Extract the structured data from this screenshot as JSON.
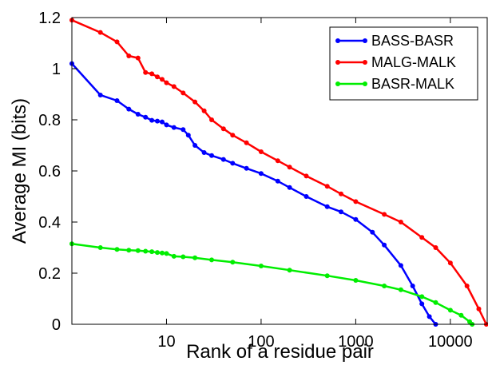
{
  "chart_data": {
    "type": "line",
    "title": "",
    "xlabel": "Rank of a residue pair",
    "ylabel": "Average MI (bits)",
    "xscale": "log",
    "xlim": [
      1,
      25000
    ],
    "ylim": [
      0,
      1.2
    ],
    "x_ticks": [
      {
        "value": 10,
        "label": "10"
      },
      {
        "value": 100,
        "label": "100"
      },
      {
        "value": 1000,
        "label": "1000"
      },
      {
        "value": 10000,
        "label": "10000"
      }
    ],
    "y_ticks": [
      {
        "value": 0,
        "label": "0"
      },
      {
        "value": 0.2,
        "label": "0.2"
      },
      {
        "value": 0.4,
        "label": "0.4"
      },
      {
        "value": 0.6,
        "label": "0.6"
      },
      {
        "value": 0.8,
        "label": "0.8"
      },
      {
        "value": 1,
        "label": "1"
      },
      {
        "value": 1.2,
        "label": "1.2"
      }
    ],
    "grid": false,
    "legend_position": "top-right",
    "series": [
      {
        "name": "BASS-BASR",
        "color": "#0000ff",
        "x": [
          1,
          2,
          3,
          4,
          5,
          6,
          7,
          8,
          9,
          10,
          12,
          15,
          17,
          20,
          25,
          30,
          40,
          50,
          70,
          100,
          150,
          200,
          300,
          500,
          700,
          1000,
          1500,
          2000,
          3000,
          4000,
          5000,
          6000,
          7000
        ],
        "y": [
          1.02,
          0.897,
          0.875,
          0.842,
          0.822,
          0.81,
          0.798,
          0.795,
          0.792,
          0.78,
          0.77,
          0.762,
          0.74,
          0.7,
          0.672,
          0.66,
          0.645,
          0.63,
          0.61,
          0.59,
          0.56,
          0.535,
          0.5,
          0.46,
          0.44,
          0.41,
          0.36,
          0.31,
          0.23,
          0.15,
          0.08,
          0.03,
          0.0
        ]
      },
      {
        "name": "MALG-MALK",
        "color": "#ff0000",
        "x": [
          1,
          2,
          3,
          4,
          5,
          6,
          7,
          8,
          9,
          10,
          12,
          15,
          20,
          25,
          30,
          40,
          50,
          70,
          100,
          150,
          200,
          300,
          500,
          700,
          1000,
          2000,
          3000,
          5000,
          7000,
          10000,
          15000,
          20000,
          24000
        ],
        "y": [
          1.19,
          1.142,
          1.105,
          1.05,
          1.042,
          0.985,
          0.98,
          0.968,
          0.958,
          0.945,
          0.93,
          0.905,
          0.87,
          0.835,
          0.8,
          0.765,
          0.74,
          0.71,
          0.675,
          0.64,
          0.615,
          0.58,
          0.54,
          0.51,
          0.48,
          0.43,
          0.4,
          0.34,
          0.3,
          0.24,
          0.15,
          0.06,
          0.0
        ]
      },
      {
        "name": "BASR-MALK",
        "color": "#00ee00",
        "x": [
          1,
          2,
          3,
          4,
          5,
          6,
          7,
          8,
          9,
          10,
          12,
          15,
          20,
          30,
          50,
          100,
          200,
          500,
          1000,
          2000,
          3000,
          5000,
          7000,
          10000,
          13000,
          16000,
          17000
        ],
        "y": [
          0.315,
          0.3,
          0.293,
          0.29,
          0.288,
          0.286,
          0.284,
          0.281,
          0.279,
          0.277,
          0.266,
          0.264,
          0.26,
          0.252,
          0.243,
          0.228,
          0.212,
          0.19,
          0.172,
          0.15,
          0.135,
          0.108,
          0.085,
          0.055,
          0.035,
          0.01,
          0.0
        ]
      }
    ]
  }
}
